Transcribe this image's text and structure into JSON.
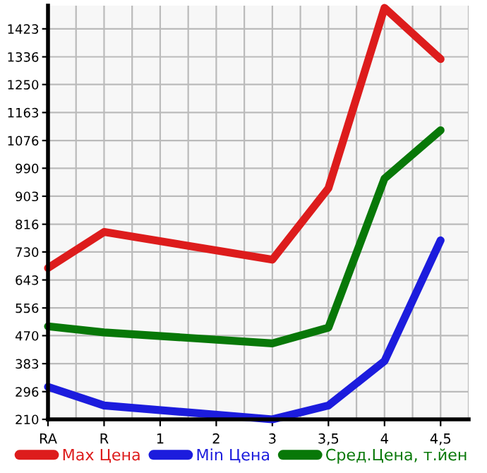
{
  "chart_data": {
    "type": "line",
    "categories": [
      "RA",
      "R",
      "1",
      "2",
      "3",
      "3,5",
      "4",
      "4,5"
    ],
    "series": [
      {
        "name": "Max Цена",
        "color": "#dd1c1c",
        "values": [
          680,
          792,
          null,
          null,
          706,
          928,
          1488,
          1329
        ]
      },
      {
        "name": "Min Цена",
        "color": "#1c1cdd",
        "values": [
          311,
          253,
          null,
          null,
          210,
          253,
          391,
          766
        ]
      },
      {
        "name": "Сред.Цена, т.йен",
        "color": "#087808",
        "values": [
          499,
          480,
          null,
          null,
          446,
          495,
          958,
          1108
        ]
      }
    ],
    "ylim": [
      210,
      1495
    ],
    "yticks": [
      210,
      296,
      383,
      470,
      556,
      643,
      730,
      816,
      903,
      990,
      1076,
      1163,
      1250,
      1336,
      1423
    ],
    "grid": true,
    "legend": "bottom",
    "marker": "none",
    "line_style": "solid"
  }
}
